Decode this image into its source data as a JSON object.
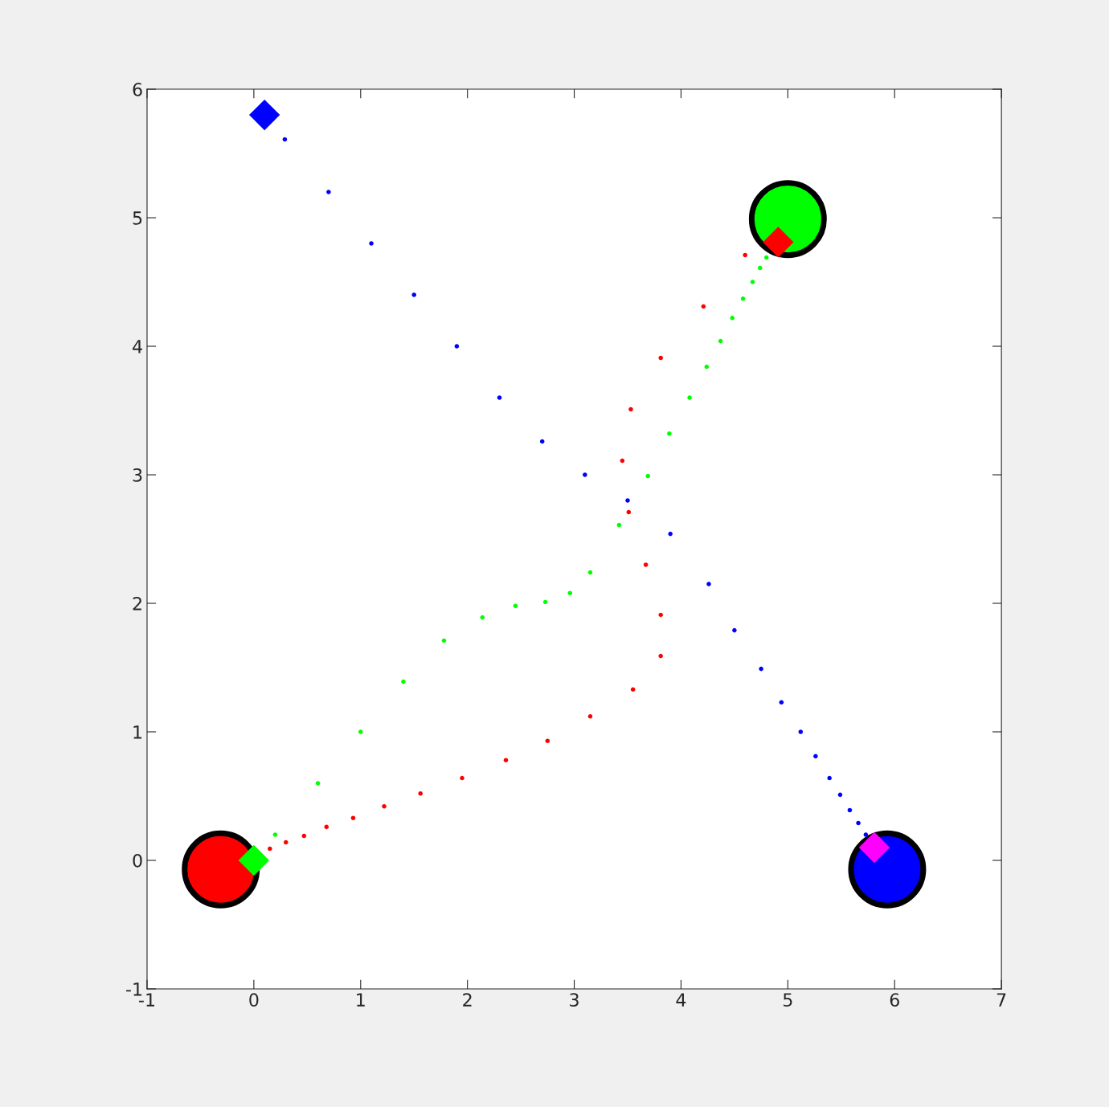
{
  "chart_data": {
    "type": "scatter",
    "xlim": [
      -1,
      7
    ],
    "ylim": [
      -1,
      6
    ],
    "xticks": [
      -1,
      0,
      1,
      2,
      3,
      4,
      5,
      6,
      7
    ],
    "yticks": [
      -1,
      0,
      1,
      2,
      3,
      4,
      5,
      6
    ],
    "grid": false,
    "series": [
      {
        "type": "bubble",
        "x": [
          -0.31,
          5.0,
          5.93
        ],
        "values": [
          -0.07,
          4.99,
          -0.07
        ],
        "sizes": [
          1,
          1,
          1
        ],
        "colors": [
          "#ff0000",
          "#00ff00",
          "#0000ff"
        ]
      },
      {
        "marker": "circle",
        "color": "#0000ff",
        "x": [
          0.29,
          0.7,
          1.1,
          1.5,
          1.9,
          2.3,
          2.7,
          3.1,
          3.5,
          3.9,
          4.26,
          4.5,
          4.75,
          4.94,
          5.12,
          5.26,
          5.39,
          5.49,
          5.58,
          5.66,
          5.73
        ],
        "values": [
          5.61,
          5.2,
          4.8,
          4.4,
          4.0,
          3.6,
          3.26,
          3.0,
          2.8,
          2.54,
          2.15,
          1.79,
          1.49,
          1.23,
          1.0,
          0.81,
          0.64,
          0.51,
          0.39,
          0.29,
          0.2
        ]
      },
      {
        "marker": "circle",
        "color": "#ff0000",
        "x": [
          0.15,
          0.3,
          0.47,
          0.68,
          0.93,
          1.22,
          1.56,
          1.95,
          2.36,
          2.75,
          3.15,
          3.55,
          3.81,
          3.81,
          3.67,
          3.51,
          3.45,
          3.53,
          3.81,
          4.21,
          4.6
        ],
        "values": [
          0.09,
          0.14,
          0.19,
          0.26,
          0.33,
          0.42,
          0.52,
          0.64,
          0.78,
          0.93,
          1.12,
          1.33,
          1.59,
          1.91,
          2.3,
          2.71,
          3.11,
          3.51,
          3.91,
          4.31,
          4.71
        ]
      },
      {
        "marker": "circle",
        "color": "#00ff00",
        "x": [
          0.2,
          0.6,
          1.0,
          1.4,
          1.78,
          2.14,
          2.45,
          2.73,
          2.96,
          3.15,
          3.42,
          3.69,
          3.89,
          4.08,
          4.24,
          4.37,
          4.48,
          4.58,
          4.67,
          4.74,
          4.8
        ],
        "values": [
          0.2,
          0.6,
          1.0,
          1.39,
          1.71,
          1.89,
          1.98,
          2.01,
          2.08,
          2.24,
          2.61,
          2.99,
          3.32,
          3.6,
          3.84,
          4.04,
          4.22,
          4.37,
          4.5,
          4.61,
          4.69
        ]
      },
      {
        "marker": "diamond",
        "color": "#0000ff",
        "x": [
          0.1
        ],
        "values": [
          5.8
        ]
      },
      {
        "marker": "diamond",
        "color": "#ff0000",
        "x": [
          4.91
        ],
        "values": [
          4.81
        ]
      },
      {
        "marker": "diamond",
        "color": "#00ff00",
        "x": [
          0.0
        ],
        "values": [
          0.0
        ]
      },
      {
        "marker": "diamond",
        "color": "#ff00ff",
        "x": [
          5.81
        ],
        "values": [
          0.1
        ]
      }
    ]
  }
}
